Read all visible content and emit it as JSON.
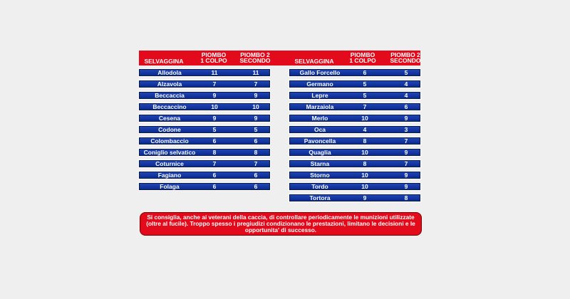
{
  "headers": {
    "name": "SELVAGGINA",
    "col1": "PIOMBO\n1 COLPO",
    "col2": "PIOMBO 2\nSECONDO"
  },
  "left": [
    {
      "name": "Allodola",
      "c1": "11",
      "c2": "11"
    },
    {
      "name": "Alzavola",
      "c1": "7",
      "c2": "7"
    },
    {
      "name": "Beccaccia",
      "c1": "9",
      "c2": "9"
    },
    {
      "name": "Beccaccino",
      "c1": "10",
      "c2": "10"
    },
    {
      "name": "Cesena",
      "c1": "9",
      "c2": "9"
    },
    {
      "name": "Codone",
      "c1": "5",
      "c2": "5"
    },
    {
      "name": "Colombaccio",
      "c1": "6",
      "c2": "6"
    },
    {
      "name": "Coniglio selvatico",
      "c1": "8",
      "c2": "8"
    },
    {
      "name": "Coturnice",
      "c1": "7",
      "c2": "7"
    },
    {
      "name": "Fagiano",
      "c1": "6",
      "c2": "6"
    },
    {
      "name": "Folaga",
      "c1": "6",
      "c2": "6"
    }
  ],
  "right": [
    {
      "name": "Gallo Forcello",
      "c1": "6",
      "c2": "5"
    },
    {
      "name": "Germano",
      "c1": "5",
      "c2": "4"
    },
    {
      "name": "Lepre",
      "c1": "5",
      "c2": "4"
    },
    {
      "name": "Marzaiola",
      "c1": "7",
      "c2": "6"
    },
    {
      "name": "Merlo",
      "c1": "10",
      "c2": "9"
    },
    {
      "name": "Oca",
      "c1": "4",
      "c2": "3"
    },
    {
      "name": "Pavoncella",
      "c1": "8",
      "c2": "7"
    },
    {
      "name": "Quaglia",
      "c1": "10",
      "c2": "9"
    },
    {
      "name": "Starna",
      "c1": "8",
      "c2": "7"
    },
    {
      "name": "Storno",
      "c1": "10",
      "c2": "9"
    },
    {
      "name": "Tordo",
      "c1": "10",
      "c2": "9"
    },
    {
      "name": "Tortora",
      "c1": "9",
      "c2": "8"
    }
  ],
  "note": "Si consiglia, anche ai veterani della caccia, di controllare periodicamente le munizioni utilizzate (oltre al fucile). Troppo spesso i pregiudizi condizionano le prestazioni, limitano le decisioni e le opportunita' di successo.",
  "colors": {
    "header": "#e30b1b",
    "row": "#1e44b8"
  }
}
